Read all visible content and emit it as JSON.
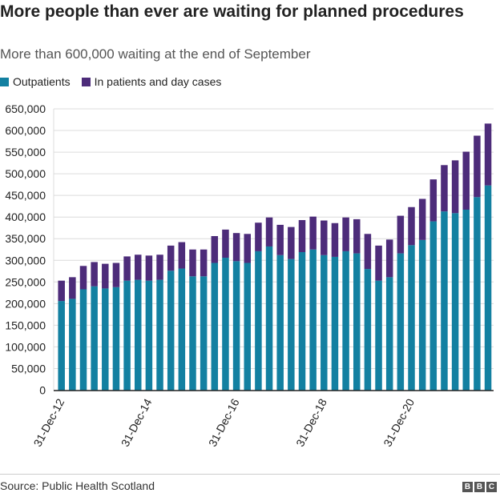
{
  "chart_data": {
    "type": "bar",
    "stacked": true,
    "title": "More people than ever are waiting for planned procedures",
    "subtitle": "More than 600,000 waiting at the end of September",
    "source": "Source: Public Health Scotland",
    "logo": "BBC",
    "colors": {
      "Outpatients": "#1380a1",
      "In patients and day cases": "#4d2c7a"
    },
    "legend_position": "top-left",
    "grid": true,
    "ylim": [
      0,
      650000
    ],
    "yticks": [
      0,
      50000,
      100000,
      150000,
      200000,
      250000,
      300000,
      350000,
      400000,
      450000,
      500000,
      550000,
      600000,
      650000
    ],
    "ytick_labels": [
      "0",
      "50,000",
      "100,000",
      "150,000",
      "200,000",
      "250,000",
      "300,000",
      "350,000",
      "400,000",
      "450,000",
      "500,000",
      "550,000",
      "600,000",
      "650,000"
    ],
    "xtick_labels": [
      "31-Dec-12",
      "31-Dec-14",
      "31-Dec-16",
      "31-Dec-18",
      "31-Dec-20"
    ],
    "xtick_indices": [
      0,
      8,
      16,
      24,
      32
    ],
    "categories": [
      "31-Dec-12",
      "31-Mar-13",
      "30-Jun-13",
      "30-Sep-13",
      "31-Dec-13",
      "31-Mar-14",
      "30-Jun-14",
      "30-Sep-14",
      "31-Dec-14",
      "31-Mar-15",
      "30-Jun-15",
      "30-Sep-15",
      "31-Dec-15",
      "31-Mar-16",
      "30-Jun-16",
      "30-Sep-16",
      "31-Dec-16",
      "31-Mar-17",
      "30-Jun-17",
      "30-Sep-17",
      "31-Dec-17",
      "31-Mar-18",
      "30-Jun-18",
      "30-Sep-18",
      "31-Dec-18",
      "31-Mar-19",
      "30-Jun-19",
      "30-Sep-19",
      "31-Dec-19",
      "31-Mar-20",
      "30-Jun-20",
      "30-Sep-20",
      "31-Dec-20",
      "31-Mar-21",
      "30-Jun-21",
      "30-Sep-21",
      "31-Dec-21",
      "31-Mar-22",
      "30-Jun-22",
      "30-Sep-22"
    ],
    "series": [
      {
        "name": "Outpatients",
        "values": [
          206000,
          211000,
          233000,
          240000,
          235000,
          238000,
          253000,
          255000,
          253000,
          255000,
          276000,
          281000,
          263000,
          263000,
          294000,
          306000,
          298000,
          294000,
          321000,
          332000,
          312000,
          303000,
          319000,
          325000,
          312000,
          308000,
          321000,
          316000,
          280000,
          253000,
          261000,
          316000,
          335000,
          347000,
          390000,
          413000,
          409000,
          417000,
          446000,
          473000
        ]
      },
      {
        "name": "In patients and day cases",
        "values": [
          47000,
          50000,
          54000,
          56000,
          57000,
          56000,
          56000,
          58000,
          58000,
          58000,
          58000,
          61000,
          62000,
          62000,
          62000,
          65000,
          65000,
          67000,
          66000,
          67000,
          70000,
          74000,
          74000,
          76000,
          80000,
          78000,
          78000,
          79000,
          81000,
          81000,
          87000,
          87000,
          88000,
          95000,
          97000,
          107000,
          122000,
          134000,
          142000,
          143000
        ]
      }
    ]
  }
}
